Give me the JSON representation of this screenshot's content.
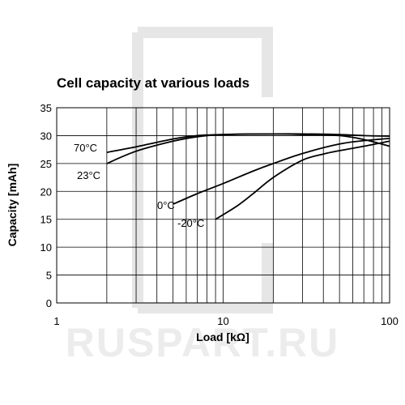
{
  "watermark": "RUSPART.RU",
  "chart_data": {
    "type": "line",
    "title": "Cell capacity at various loads",
    "xlabel": "Load [kΩ]",
    "ylabel": "Capacity [mAh]",
    "xscale": "log",
    "xlim": [
      1,
      100
    ],
    "ylim": [
      0,
      35
    ],
    "x_ticks": [
      1,
      10,
      100
    ],
    "y_ticks": [
      0,
      5,
      10,
      15,
      20,
      25,
      30,
      35
    ],
    "grid": true,
    "series": [
      {
        "name": "70°C",
        "x": [
          2,
          3,
          5,
          7,
          10,
          20,
          30,
          50,
          70,
          100
        ],
        "y": [
          27.0,
          28.0,
          29.4,
          30.0,
          30.2,
          30.3,
          30.2,
          30.0,
          29.3,
          28.1
        ]
      },
      {
        "name": "23°C",
        "x": [
          2,
          3,
          5,
          7,
          10,
          20,
          30,
          50,
          70,
          100
        ],
        "y": [
          25.0,
          27.2,
          29.0,
          29.8,
          30.2,
          30.3,
          30.3,
          30.2,
          30.0,
          29.9
        ]
      },
      {
        "name": "0°C",
        "x": [
          5,
          7,
          10,
          15,
          20,
          30,
          50,
          70,
          100
        ],
        "y": [
          17.7,
          19.6,
          21.4,
          23.6,
          25.0,
          26.8,
          28.5,
          29.1,
          29.5
        ]
      },
      {
        "name": "-20°C",
        "x": [
          9,
          12,
          15,
          20,
          30,
          40,
          50,
          70,
          100
        ],
        "y": [
          15.0,
          17.3,
          19.5,
          22.5,
          25.6,
          26.7,
          27.3,
          28.1,
          29.0
        ]
      }
    ]
  }
}
